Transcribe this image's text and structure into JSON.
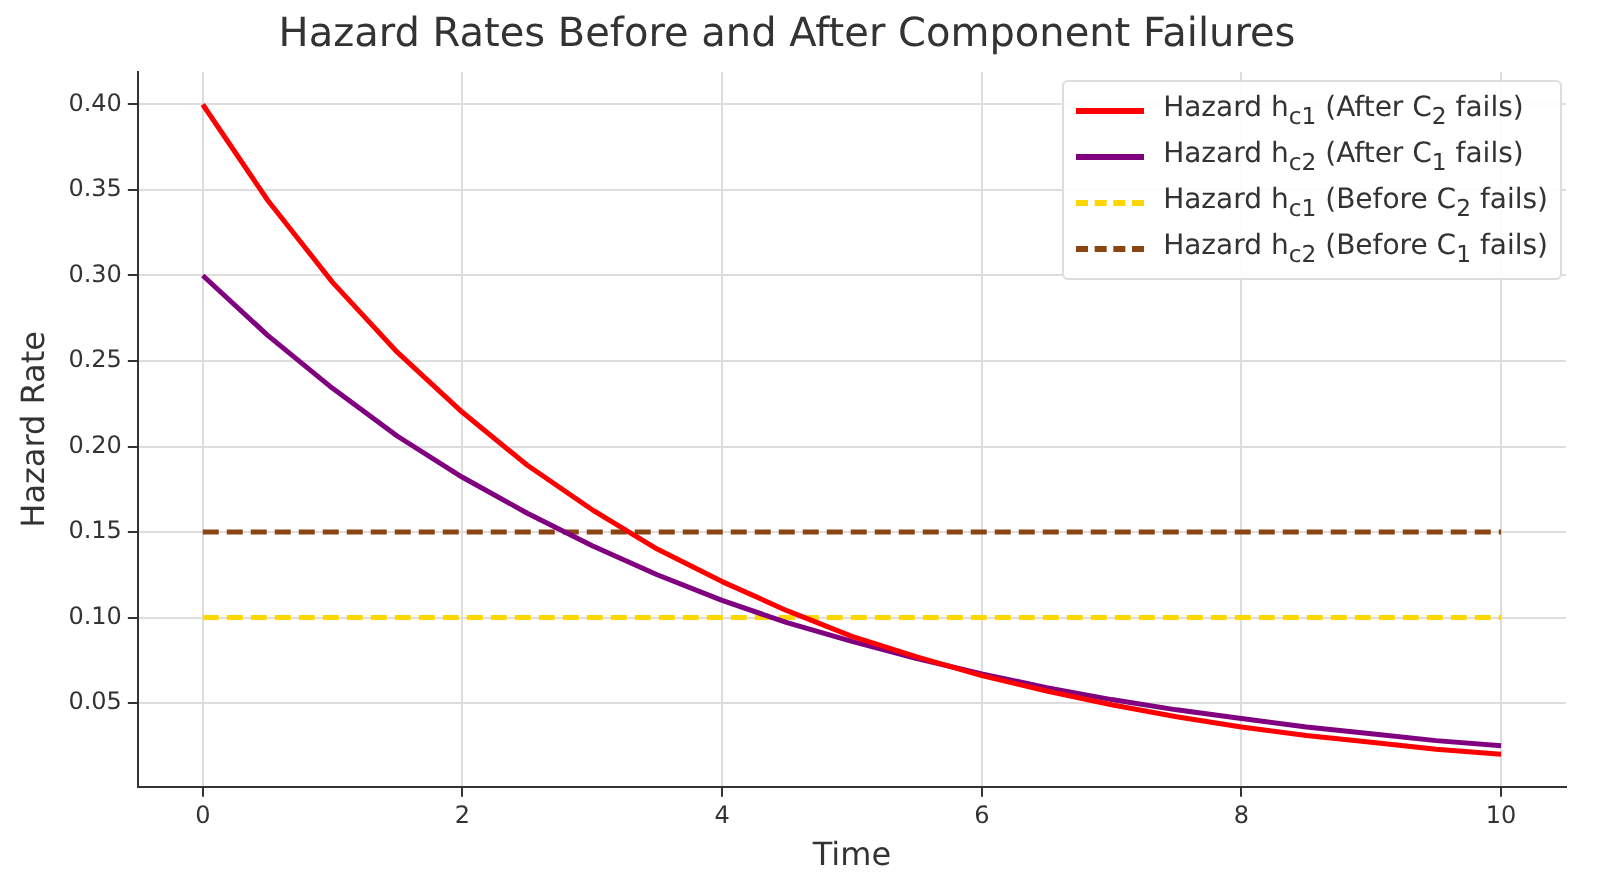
{
  "chart_data": {
    "type": "line",
    "title": "Hazard Rates Before and After Component Failures",
    "xlabel": "Time",
    "ylabel": "Hazard Rate",
    "xlim": [
      -0.5,
      10.5
    ],
    "xticks": [
      0,
      2,
      4,
      6,
      8,
      10
    ],
    "ylim": [
      0.001,
      0.419
    ],
    "yticks": [
      0.05,
      {
        "value": 0.1,
        "label": "0.10"
      },
      0.15,
      {
        "value": 0.2,
        "label": "0.20"
      },
      0.25,
      {
        "value": 0.3,
        "label": "0.30"
      },
      0.35,
      {
        "value": 0.4,
        "label": "0.40"
      }
    ],
    "grid": true,
    "legend": "top right",
    "marker": "none",
    "series": [
      {
        "name": "Hazard h$_{c1}$ (After C$_{2}$ fails)",
        "color": "#ff0000",
        "line_style": "solid",
        "x": [
          0,
          0.5,
          1,
          1.5,
          2,
          2.5,
          3,
          3.5,
          4,
          4.5,
          5,
          5.5,
          6,
          6.5,
          7,
          7.5,
          8,
          8.5,
          9,
          9.5,
          10
        ],
        "values": [
          0.4,
          0.344,
          0.296,
          0.255,
          0.22,
          0.189,
          0.163,
          0.14,
          0.121,
          0.104,
          0.089,
          0.077,
          0.066,
          0.057,
          0.049,
          0.042,
          0.036,
          0.031,
          0.027,
          0.023,
          0.02
        ]
      },
      {
        "name": "Hazard h$_{c2}$ (After C$_{1}$ fails)",
        "color": "#800080",
        "line_style": "solid",
        "x": [
          0,
          0.5,
          1,
          1.5,
          2,
          2.5,
          3,
          3.5,
          4,
          4.5,
          5,
          5.5,
          6,
          6.5,
          7,
          7.5,
          8,
          8.5,
          9,
          9.5,
          10
        ],
        "values": [
          0.3,
          0.265,
          0.234,
          0.206,
          0.182,
          0.161,
          0.142,
          0.125,
          0.11,
          0.097,
          0.086,
          0.076,
          0.067,
          0.059,
          0.052,
          0.046,
          0.041,
          0.036,
          0.032,
          0.028,
          0.025
        ]
      },
      {
        "name": "Hazard h$_{c1}$ (Before C$_{2}$ fails)",
        "color": "#ffd700",
        "line_style": "dashed",
        "x": [
          0,
          10
        ],
        "values": [
          0.1,
          0.1
        ]
      },
      {
        "name": "Hazard h$_{c2}$ (Before C$_{1}$ fails)",
        "color": "#8b4513",
        "line_style": "dashed",
        "x": [
          0,
          10
        ],
        "values": [
          0.15,
          0.15
        ]
      }
    ]
  }
}
